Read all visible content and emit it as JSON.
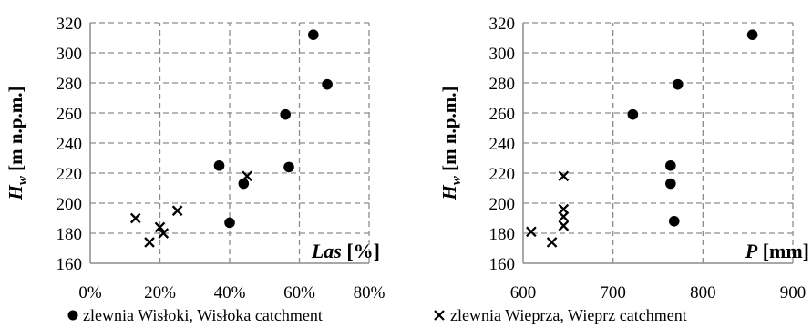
{
  "chart_data": [
    {
      "type": "scatter",
      "ylabel_main": "H",
      "ylabel_sub": "w",
      "ylabel_rest": " [m n.p.m.]",
      "xlabel_italic": "Las",
      "xlabel_rest": " [%]",
      "xlim": [
        0,
        80
      ],
      "ylim": [
        160,
        320
      ],
      "xticks": [
        0,
        20,
        40,
        60,
        80
      ],
      "xtick_labels": [
        "0%",
        "20%",
        "40%",
        "60%",
        "80%"
      ],
      "yticks": [
        160,
        180,
        200,
        220,
        240,
        260,
        280,
        300,
        320
      ],
      "ytick_labels": [
        "160",
        "180",
        "200",
        "220",
        "240",
        "260",
        "280",
        "300",
        "320"
      ],
      "grid": true,
      "series": [
        {
          "marker": "dot",
          "points": [
            {
              "x": 64,
              "y": 312
            },
            {
              "x": 68,
              "y": 279
            },
            {
              "x": 56,
              "y": 259
            },
            {
              "x": 37,
              "y": 225
            },
            {
              "x": 57,
              "y": 224
            },
            {
              "x": 44,
              "y": 213
            },
            {
              "x": 40,
              "y": 187
            }
          ]
        },
        {
          "marker": "x",
          "points": [
            {
              "x": 45,
              "y": 218
            },
            {
              "x": 25,
              "y": 195
            },
            {
              "x": 13,
              "y": 190
            },
            {
              "x": 20,
              "y": 184
            },
            {
              "x": 21,
              "y": 180
            },
            {
              "x": 17,
              "y": 174
            }
          ]
        }
      ]
    },
    {
      "type": "scatter",
      "ylabel_main": "H",
      "ylabel_sub": "w",
      "ylabel_rest": " [m n.p.m.]",
      "xlabel_italic": "P",
      "xlabel_rest": " [mm]",
      "xlim": [
        600,
        900
      ],
      "ylim": [
        160,
        320
      ],
      "xticks": [
        600,
        700,
        800,
        900
      ],
      "xtick_labels": [
        "600",
        "700",
        "800",
        "900"
      ],
      "yticks": [
        160,
        180,
        200,
        220,
        240,
        260,
        280,
        300,
        320
      ],
      "ytick_labels": [
        "160",
        "180",
        "200",
        "220",
        "240",
        "260",
        "280",
        "300",
        "320"
      ],
      "grid": true,
      "series": [
        {
          "marker": "dot",
          "points": [
            {
              "x": 855,
              "y": 312
            },
            {
              "x": 772,
              "y": 279
            },
            {
              "x": 722,
              "y": 259
            },
            {
              "x": 764,
              "y": 225
            },
            {
              "x": 764,
              "y": 213
            },
            {
              "x": 768,
              "y": 188
            }
          ]
        },
        {
          "marker": "x",
          "points": [
            {
              "x": 645,
              "y": 218
            },
            {
              "x": 645,
              "y": 196
            },
            {
              "x": 645,
              "y": 191
            },
            {
              "x": 645,
              "y": 185
            },
            {
              "x": 609,
              "y": 181
            },
            {
              "x": 632,
              "y": 174
            }
          ]
        }
      ]
    }
  ],
  "legend": {
    "placement": "bottom",
    "items": [
      {
        "marker": "dot",
        "label": "zlewnia Wisłoki, Wisłoka catchment"
      },
      {
        "marker": "x",
        "label": "zlewnia Wieprza, Wieprz catchment"
      }
    ]
  }
}
